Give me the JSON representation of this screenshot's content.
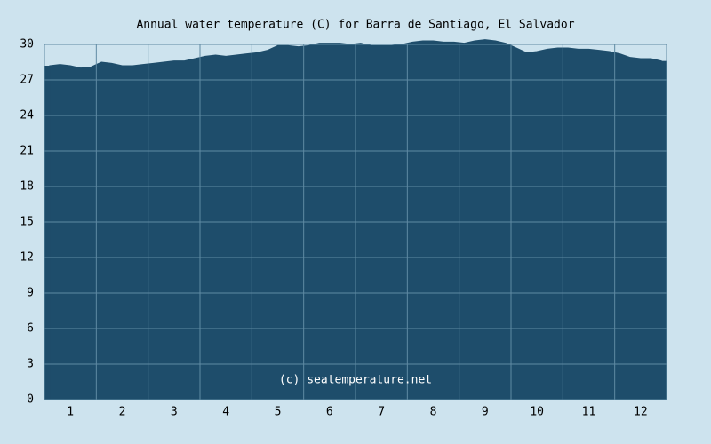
{
  "chart_data": {
    "type": "area",
    "title": "Annual water temperature (C) for Barra de Santiago, El Salvador",
    "annotation": "(c) seatemperature.net",
    "categories": [
      null,
      null,
      "1",
      null,
      null,
      null,
      null,
      "2",
      null,
      null,
      null,
      null,
      "3",
      null,
      null,
      null,
      null,
      "4",
      null,
      null,
      null,
      null,
      "5",
      null,
      null,
      null,
      null,
      "6",
      null,
      null,
      null,
      null,
      "7",
      null,
      null,
      null,
      null,
      "8",
      null,
      null,
      null,
      null,
      "9",
      null,
      null,
      null,
      null,
      "10",
      null,
      null,
      null,
      null,
      "11",
      null,
      null,
      null,
      null,
      "12",
      null,
      null
    ],
    "values": [
      28.2,
      28.3,
      28.2,
      28.0,
      28.1,
      28.5,
      28.4,
      28.2,
      28.2,
      28.3,
      28.4,
      28.5,
      28.6,
      28.6,
      28.8,
      29.0,
      29.1,
      29.0,
      29.1,
      29.2,
      29.3,
      29.5,
      29.9,
      29.9,
      29.8,
      29.9,
      30.1,
      30.1,
      30.1,
      30.0,
      30.1,
      29.9,
      29.9,
      29.9,
      30.0,
      30.2,
      30.3,
      30.3,
      30.2,
      30.2,
      30.1,
      30.3,
      30.4,
      30.3,
      30.1,
      29.7,
      29.3,
      29.4,
      29.6,
      29.7,
      29.7,
      29.6,
      29.6,
      29.5,
      29.4,
      29.2,
      28.9,
      28.8,
      28.8,
      28.6
    ],
    "color": "#1e4d6b",
    "ylim": [
      0,
      30
    ],
    "yticks": [
      0,
      3,
      6,
      9,
      12,
      15,
      18,
      21,
      24,
      27,
      30
    ],
    "grid": true
  }
}
